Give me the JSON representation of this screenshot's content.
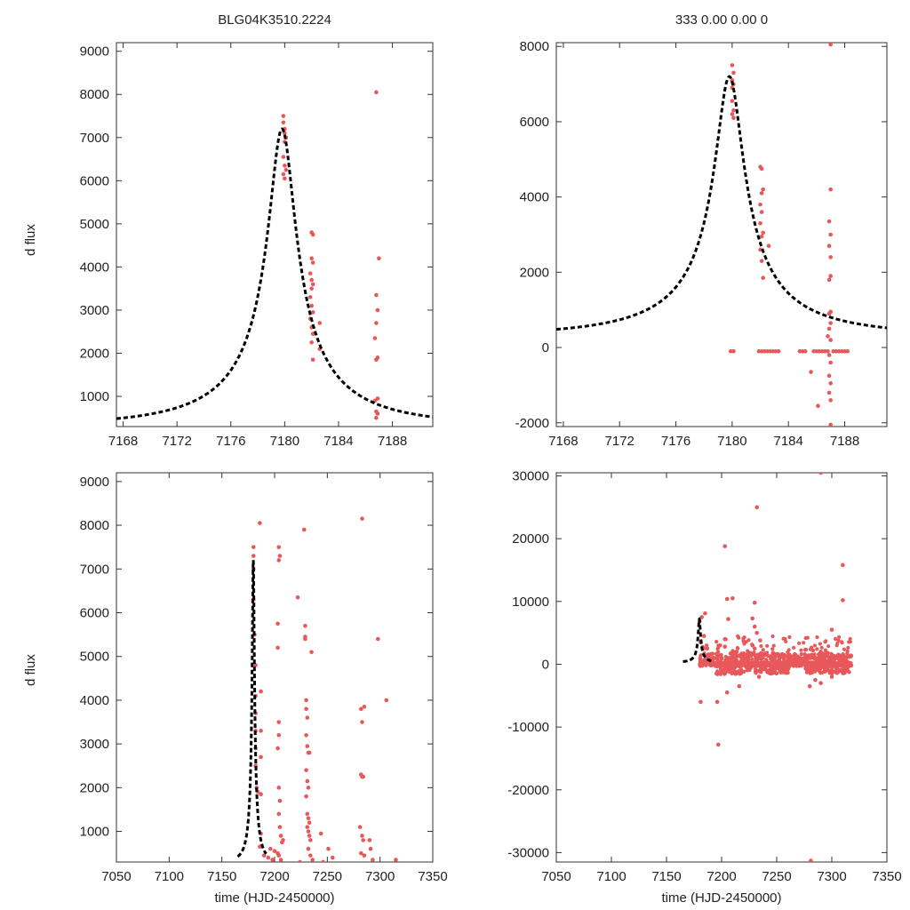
{
  "figure": {
    "top_left_title": "BLG04K3510.2224",
    "top_right_title": "333  0.00  0.00  0",
    "ylabel_top": "d flux",
    "ylabel_bottom": "d flux",
    "xlabel_left": "time (HJD-2450000)",
    "xlabel_right": "time (HJD-2450000)",
    "point_color": "#e8585a",
    "model_color": "#000000"
  },
  "chart_data": [
    {
      "id": "top-left",
      "type": "scatter",
      "title": "BLG04K3510.2224",
      "xlabel": "",
      "ylabel": "d flux",
      "xlim": [
        7167.5,
        7191
      ],
      "ylim": [
        300,
        9200
      ],
      "xticks": [
        7168,
        7172,
        7176,
        7180,
        7184,
        7188
      ],
      "yticks": [
        1000,
        2000,
        3000,
        4000,
        5000,
        6000,
        7000,
        8000,
        9000
      ],
      "points": [
        [
          7179.9,
          7500
        ],
        [
          7179.9,
          7350
        ],
        [
          7180.0,
          7200
        ],
        [
          7180.0,
          7100
        ],
        [
          7180.1,
          7000
        ],
        [
          7180.0,
          6900
        ],
        [
          7179.9,
          6550
        ],
        [
          7180.0,
          6350
        ],
        [
          7180.1,
          6250
        ],
        [
          7179.9,
          6150
        ],
        [
          7180.0,
          6050
        ],
        [
          7182.0,
          4800
        ],
        [
          7182.1,
          4750
        ],
        [
          7182.0,
          4200
        ],
        [
          7182.1,
          4100
        ],
        [
          7181.9,
          3850
        ],
        [
          7182.0,
          3700
        ],
        [
          7182.1,
          3600
        ],
        [
          7182.0,
          3500
        ],
        [
          7181.9,
          3300
        ],
        [
          7182.0,
          3100
        ],
        [
          7182.1,
          2950
        ],
        [
          7181.9,
          2800
        ],
        [
          7182.0,
          2600
        ],
        [
          7182.1,
          2450
        ],
        [
          7182.0,
          2250
        ],
        [
          7182.6,
          2700
        ],
        [
          7182.6,
          2100
        ],
        [
          7182.1,
          1850
        ],
        [
          7186.8,
          8050
        ],
        [
          7187.0,
          4200
        ],
        [
          7186.8,
          3350
        ],
        [
          7186.9,
          3000
        ],
        [
          7186.8,
          2700
        ],
        [
          7186.7,
          2350
        ],
        [
          7186.9,
          1900
        ],
        [
          7186.8,
          1850
        ],
        [
          7186.9,
          950
        ],
        [
          7186.7,
          900
        ],
        [
          7186.8,
          650
        ],
        [
          7186.9,
          600
        ],
        [
          7186.8,
          500
        ]
      ],
      "model": {
        "name": "microlensing model",
        "t0": 7179.8,
        "peak": 7200,
        "base": 320,
        "u0": 0.1,
        "tE": 10.0
      }
    },
    {
      "id": "top-right",
      "type": "scatter",
      "title": "333  0.00  0.00  0",
      "xlabel": "",
      "ylabel": "",
      "xlim": [
        7167.5,
        7191
      ],
      "ylim": [
        -2100,
        8100
      ],
      "xticks": [
        7168,
        7172,
        7176,
        7180,
        7184,
        7188
      ],
      "yticks": [
        -2000,
        0,
        2000,
        4000,
        6000,
        8000
      ],
      "points": [
        [
          7180.0,
          7500
        ],
        [
          7180.1,
          7300
        ],
        [
          7180.0,
          7100
        ],
        [
          7180.1,
          7000
        ],
        [
          7180.0,
          6900
        ],
        [
          7180.0,
          6550
        ],
        [
          7180.1,
          6300
        ],
        [
          7180.0,
          6200
        ],
        [
          7180.1,
          6100
        ],
        [
          7182.0,
          4800
        ],
        [
          7182.1,
          4750
        ],
        [
          7182.2,
          4200
        ],
        [
          7182.1,
          4100
        ],
        [
          7182.0,
          3800
        ],
        [
          7182.1,
          3600
        ],
        [
          7182.0,
          3300
        ],
        [
          7182.2,
          3050
        ],
        [
          7182.1,
          2950
        ],
        [
          7182.0,
          2600
        ],
        [
          7182.1,
          2300
        ],
        [
          7182.6,
          2700
        ],
        [
          7182.2,
          1850
        ],
        [
          7187.0,
          8050
        ],
        [
          7187.0,
          4200
        ],
        [
          7186.9,
          3350
        ],
        [
          7187.0,
          3000
        ],
        [
          7186.9,
          2700
        ],
        [
          7187.0,
          2400
        ],
        [
          7187.0,
          1900
        ],
        [
          7186.9,
          1800
        ],
        [
          7187.0,
          950
        ],
        [
          7186.9,
          900
        ],
        [
          7187.0,
          650
        ],
        [
          7186.9,
          500
        ],
        [
          7186.8,
          300
        ],
        [
          7187.0,
          200
        ],
        [
          7186.9,
          -200
        ],
        [
          7187.0,
          -400
        ],
        [
          7186.9,
          -750
        ],
        [
          7187.0,
          -950
        ],
        [
          7186.9,
          -1200
        ],
        [
          7187.0,
          -1400
        ],
        [
          7186.1,
          -1550
        ],
        [
          7187.0,
          -2050
        ],
        [
          7185.6,
          -650
        ],
        [
          7179.9,
          -100
        ],
        [
          7180.1,
          -100
        ],
        [
          7181.9,
          -100
        ],
        [
          7182.1,
          -100
        ],
        [
          7182.3,
          -100
        ],
        [
          7182.5,
          -100
        ],
        [
          7182.7,
          -100
        ],
        [
          7182.9,
          -100
        ],
        [
          7183.1,
          -100
        ],
        [
          7183.3,
          -100
        ],
        [
          7184.8,
          -100
        ],
        [
          7185.0,
          -100
        ],
        [
          7185.2,
          -100
        ],
        [
          7185.8,
          -100
        ],
        [
          7186.0,
          -100
        ],
        [
          7186.2,
          -100
        ],
        [
          7186.4,
          -100
        ],
        [
          7186.6,
          -100
        ],
        [
          7186.8,
          -100
        ],
        [
          7187.2,
          -100
        ],
        [
          7187.4,
          -100
        ],
        [
          7187.6,
          -100
        ],
        [
          7187.8,
          -100
        ],
        [
          7188.0,
          -100
        ],
        [
          7188.2,
          -100
        ]
      ],
      "model": {
        "name": "microlensing model",
        "t0": 7179.8,
        "peak": 7200,
        "base": 320,
        "u0": 0.1,
        "tE": 10.0
      }
    },
    {
      "id": "bottom-left",
      "type": "scatter",
      "title": "",
      "xlabel": "time (HJD-2450000)",
      "ylabel": "d flux",
      "xlim": [
        7050,
        7350
      ],
      "ylim": [
        300,
        9200
      ],
      "xticks": [
        7050,
        7100,
        7150,
        7200,
        7250,
        7300,
        7350
      ],
      "yticks": [
        1000,
        2000,
        3000,
        4000,
        5000,
        6000,
        7000,
        8000,
        9000
      ],
      "points": [
        [
          7180,
          7500
        ],
        [
          7180,
          7300
        ],
        [
          7180,
          7000
        ],
        [
          7180,
          6300
        ],
        [
          7181,
          5500
        ],
        [
          7182,
          4800
        ],
        [
          7182,
          4100
        ],
        [
          7182,
          3700
        ],
        [
          7182,
          3300
        ],
        [
          7182,
          2900
        ],
        [
          7182,
          2500
        ],
        [
          7183,
          2000
        ],
        [
          7184,
          1900
        ],
        [
          7186,
          8050
        ],
        [
          7187,
          4200
        ],
        [
          7187,
          3300
        ],
        [
          7187,
          2700
        ],
        [
          7187,
          1850
        ],
        [
          7187,
          950
        ],
        [
          7186,
          650
        ],
        [
          7190,
          450
        ],
        [
          7194,
          400
        ],
        [
          7198,
          350
        ],
        [
          7196,
          600
        ],
        [
          7200,
          550
        ],
        [
          7203,
          5750
        ],
        [
          7203,
          5200
        ],
        [
          7204,
          7500
        ],
        [
          7204,
          3500
        ],
        [
          7205,
          7300
        ],
        [
          7204,
          7200
        ],
        [
          7204,
          3200
        ],
        [
          7203,
          2900
        ],
        [
          7204,
          2000
        ],
        [
          7205,
          1700
        ],
        [
          7204,
          1400
        ],
        [
          7205,
          1100
        ],
        [
          7206,
          900
        ],
        [
          7207,
          750
        ],
        [
          7208,
          800
        ],
        [
          7203,
          500
        ],
        [
          7204,
          450
        ],
        [
          7206,
          350
        ],
        [
          7222,
          6350
        ],
        [
          7224,
          300
        ],
        [
          7228,
          7900
        ],
        [
          7229,
          5700
        ],
        [
          7229,
          5450
        ],
        [
          7229,
          5400
        ],
        [
          7230,
          4000
        ],
        [
          7230,
          3800
        ],
        [
          7231,
          3600
        ],
        [
          7230,
          3200
        ],
        [
          7231,
          2950
        ],
        [
          7232,
          2800
        ],
        [
          7233,
          2800
        ],
        [
          7230,
          2400
        ],
        [
          7231,
          2150
        ],
        [
          7232,
          2000
        ],
        [
          7230,
          1800
        ],
        [
          7231,
          1400
        ],
        [
          7232,
          1300
        ],
        [
          7233,
          1200
        ],
        [
          7231,
          1100
        ],
        [
          7232,
          1000
        ],
        [
          7233,
          900
        ],
        [
          7234,
          800
        ],
        [
          7232,
          600
        ],
        [
          7234,
          450
        ],
        [
          7235,
          5100
        ],
        [
          7236,
          350
        ],
        [
          7244,
          950
        ],
        [
          7246,
          300
        ],
        [
          7251,
          600
        ],
        [
          7255,
          400
        ],
        [
          7283,
          8150
        ],
        [
          7282,
          3800
        ],
        [
          7285,
          3850
        ],
        [
          7283,
          3500
        ],
        [
          7282,
          2300
        ],
        [
          7283,
          2250
        ],
        [
          7284,
          2250
        ],
        [
          7281,
          1100
        ],
        [
          7283,
          900
        ],
        [
          7284,
          800
        ],
        [
          7282,
          500
        ],
        [
          7285,
          450
        ],
        [
          7290,
          800
        ],
        [
          7291,
          600
        ],
        [
          7293,
          350
        ],
        [
          7298,
          5400
        ],
        [
          7306,
          4000
        ],
        [
          7315,
          350
        ]
      ],
      "model": {
        "name": "microlensing model",
        "t0": 7179.8,
        "peak": 7200,
        "base": 320,
        "u0": 0.1,
        "tE": 10.0
      }
    },
    {
      "id": "bottom-right",
      "type": "scatter",
      "title": "",
      "xlabel": "time (HJD-2450000)",
      "ylabel": "",
      "xlim": [
        7050,
        7350
      ],
      "ylim": [
        -31500,
        30500
      ],
      "xticks": [
        7050,
        7100,
        7150,
        7200,
        7250,
        7300,
        7350
      ],
      "yticks": [
        -30000,
        -20000,
        -10000,
        0,
        10000,
        20000,
        30000
      ],
      "points": [
        [
          7290,
          30500
        ],
        [
          7232,
          25000
        ],
        [
          7203,
          18800
        ],
        [
          7310,
          15800
        ],
        [
          7210,
          10500
        ],
        [
          7205,
          10400
        ],
        [
          7230,
          9800
        ],
        [
          7310,
          10200
        ],
        [
          7185,
          8100
        ],
        [
          7182,
          7500
        ],
        [
          7206,
          7200
        ],
        [
          7228,
          7300
        ],
        [
          7180,
          6800
        ],
        [
          7230,
          6000
        ],
        [
          7232,
          5000
        ],
        [
          7300,
          5500
        ],
        [
          7184,
          4500
        ],
        [
          7203,
          4000
        ],
        [
          7235,
          3800
        ],
        [
          7228,
          3000
        ],
        [
          7181,
          3500
        ],
        [
          7187,
          2500
        ],
        [
          7203,
          2800
        ],
        [
          7210,
          2000
        ],
        [
          7226,
          1800
        ],
        [
          7230,
          2500
        ],
        [
          7233,
          1500
        ],
        [
          7276,
          2300
        ],
        [
          7283,
          2200
        ],
        [
          7290,
          2000
        ],
        [
          7296,
          1800
        ],
        [
          7306,
          1500
        ],
        [
          7181,
          -6000
        ],
        [
          7196,
          -6000
        ],
        [
          7197,
          -12800
        ],
        [
          7205,
          -4500
        ],
        [
          7216,
          -3500
        ],
        [
          7234,
          -2000
        ],
        [
          7280,
          -3500
        ],
        [
          7285,
          -2500
        ],
        [
          7281,
          -31300
        ],
        [
          7290,
          -3000
        ],
        [
          7300,
          -2000
        ]
      ],
      "bands": [
        [
          7180,
          7318,
          4500,
          0
        ],
        [
          7195,
          7218,
          1800,
          -1600
        ],
        [
          7220,
          7262,
          1800,
          -1500
        ],
        [
          7276,
          7316,
          1500,
          -1500
        ]
      ],
      "model": {
        "name": "microlensing model",
        "t0": 7179.8,
        "peak": 7200,
        "base": 320,
        "u0": 0.1,
        "tE": 10.0
      }
    }
  ]
}
